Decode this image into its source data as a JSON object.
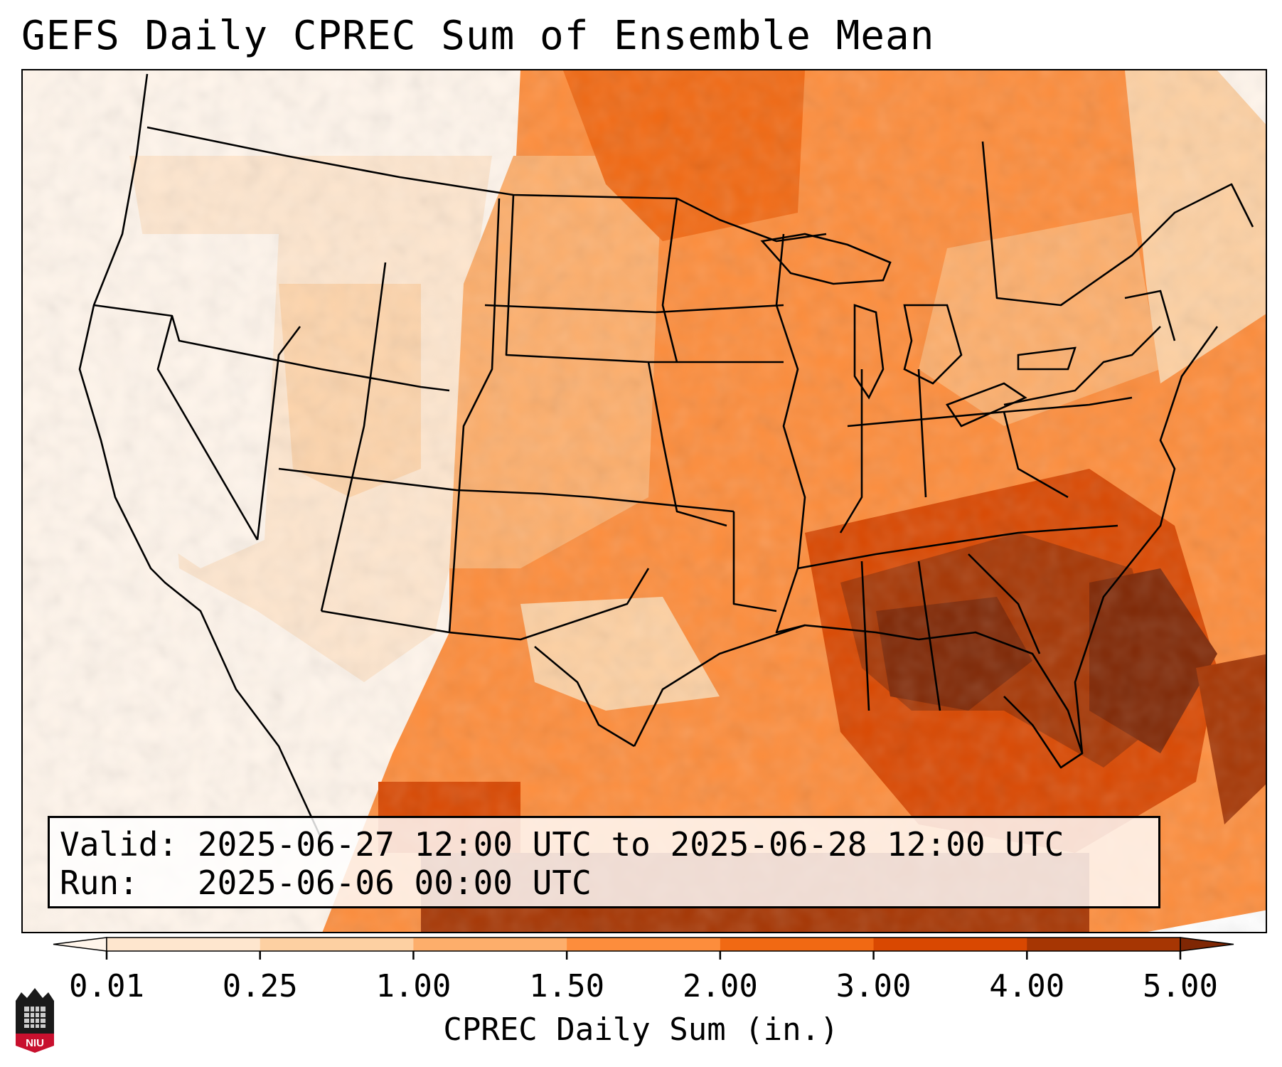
{
  "title": "GEFS Daily CPREC Sum of Ensemble Mean",
  "info": {
    "valid_label": "Valid:",
    "valid_value": "2025-06-27 12:00 UTC to 2025-06-28 12:00 UTC",
    "run_label": "Run:",
    "run_value": "2025-06-06 00:00 UTC"
  },
  "colorbar": {
    "label": "CPREC Daily Sum (in.)",
    "ticks": [
      "0.01",
      "0.25",
      "1.00",
      "1.50",
      "2.00",
      "3.00",
      "4.00",
      "5.00"
    ],
    "colors": [
      "#fff5eb",
      "#fee6ce",
      "#fdd0a2",
      "#fdae6b",
      "#fd8d3c",
      "#f16913",
      "#d94801",
      "#a63603",
      "#7f2704"
    ]
  },
  "logo": {
    "text": "NIU"
  }
}
